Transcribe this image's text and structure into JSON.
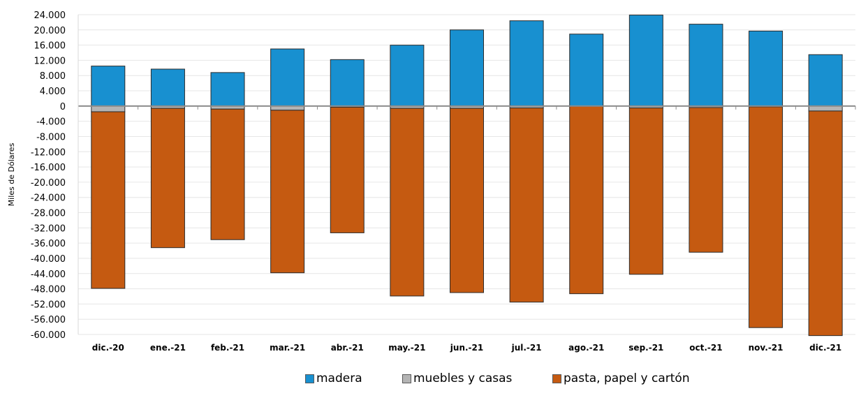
{
  "chart_data": {
    "type": "bar",
    "stacked": true,
    "ylabel": "Miles de Dólares",
    "ylim": [
      -60000,
      24000
    ],
    "ytick_step": 4000,
    "ytick_labels": [
      "24.000",
      "20.000",
      "16.000",
      "12.000",
      "8.000",
      "4.000",
      "0",
      "-4.000",
      "-8.000",
      "-12.000",
      "-16.000",
      "-20.000",
      "-24.000",
      "-28.000",
      "-32.000",
      "-36.000",
      "-40.000",
      "-44.000",
      "-48.000",
      "-52.000",
      "-56.000",
      "-60.000"
    ],
    "categories": [
      "dic.-20",
      "ene.-21",
      "feb.-21",
      "mar.-21",
      "abr.-21",
      "may.-21",
      "jun.-21",
      "jul.-21",
      "ago.-21",
      "sep.-21",
      "oct.-21",
      "nov.-21",
      "dic.-21"
    ],
    "series": [
      {
        "name": "madera",
        "color": "#1890d0",
        "values": [
          10500,
          9700,
          8800,
          15000,
          12200,
          16000,
          20000,
          22400,
          18900,
          23900,
          21500,
          19700,
          13500
        ]
      },
      {
        "name": "muebles y casas",
        "color": "#b4b4b4",
        "values": [
          -1500,
          -600,
          -800,
          -1100,
          -300,
          -600,
          -600,
          -500,
          -100,
          -500,
          -400,
          -200,
          -1300
        ]
      },
      {
        "name": "pasta, papel y cartón",
        "color": "#c55a11",
        "values": [
          -46400,
          -36600,
          -34300,
          -42700,
          -33000,
          -49300,
          -48400,
          -51000,
          -49200,
          -43700,
          -38000,
          -58000,
          -59000
        ]
      }
    ],
    "legend_position": "bottom",
    "grid": true
  }
}
